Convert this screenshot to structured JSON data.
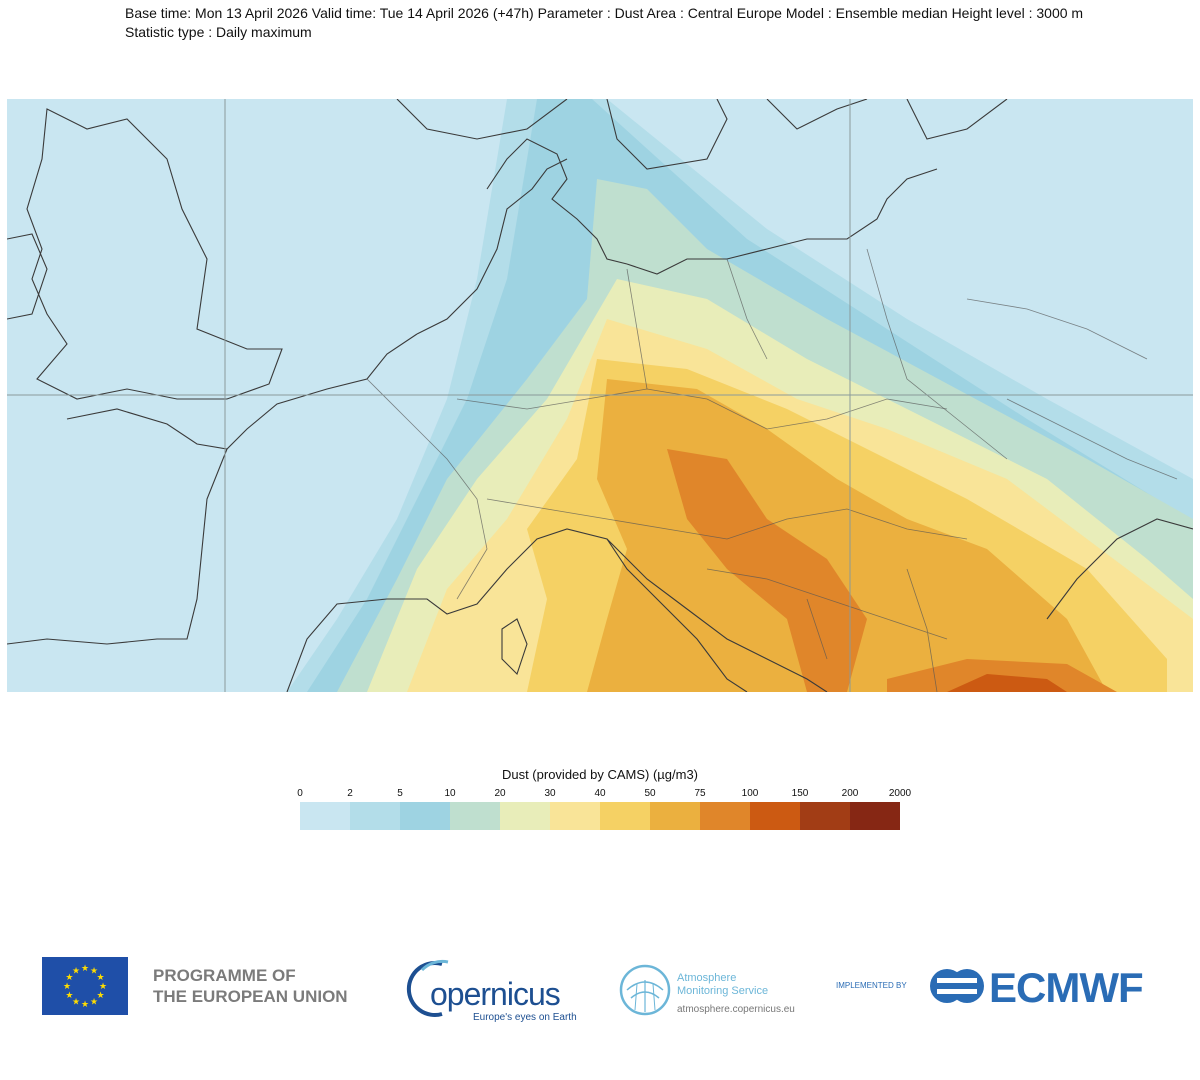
{
  "header": {
    "line1": "Base time: Mon 13 April 2026 Valid time: Tue 14 April 2026 (+47h) Parameter : Dust Area : Central Europe Model : Ensemble median Height level : 3000 m",
    "line2": "Statistic type : Daily maximum"
  },
  "legend": {
    "title": "Dust (provided by CAMS) (µg/m3)",
    "ticks": [
      "0",
      "2",
      "5",
      "10",
      "20",
      "30",
      "40",
      "50",
      "75",
      "100",
      "150",
      "200",
      "2000"
    ],
    "colors": [
      "#c9e6f1",
      "#b3dde9",
      "#9ed3e2",
      "#bfdfcf",
      "#e8edb9",
      "#f9e498",
      "#f5d164",
      "#ebb03f",
      "#e0862a",
      "#cc5a12",
      "#a23d15",
      "#862714"
    ]
  },
  "footer": {
    "eu_line1": "PROGRAMME OF",
    "eu_line2": "THE EUROPEAN UNION",
    "copernicus_name": "opernicus",
    "copernicus_tagline": "Europe's eyes on Earth",
    "ams_line1": "Atmosphere",
    "ams_line2": "Monitoring Service",
    "ams_url": "atmosphere.copernicus.eu",
    "implemented_by": "IMPLEMENTED BY",
    "ecmwf": "ECMWF"
  },
  "colors": {
    "eu_blue": "#1f4fa8",
    "eu_star": "#ffdd00",
    "copernicus_blue": "#1d4f91",
    "ams_blue": "#6cb6d8",
    "ecmwf_blue": "#2a6cb5"
  }
}
